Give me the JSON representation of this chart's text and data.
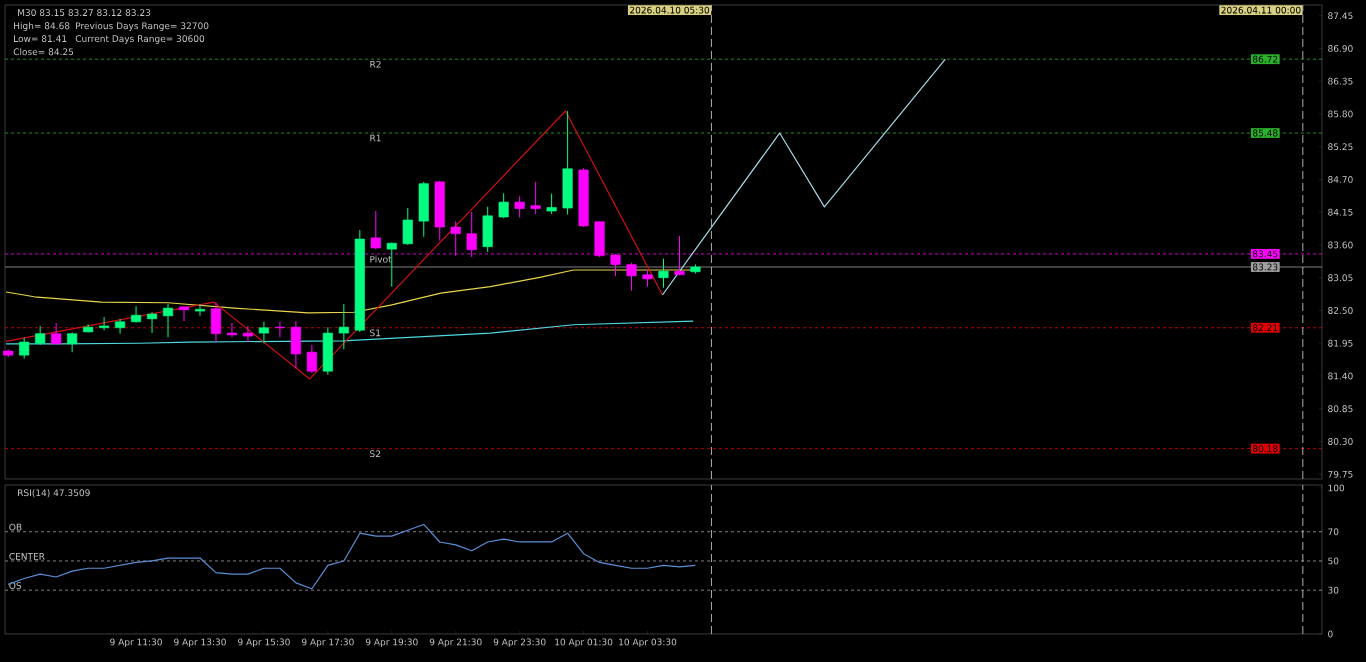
{
  "chart_data": [
    {
      "type": "candlestick",
      "title": "M30 83.15 83.27 83.12 83.23",
      "annotations": [
        "High= 84.68",
        "Previous Days Range= 32700",
        "Low= 81.41",
        "Current Days Range= 30600",
        "Close= 84.25",
        {
          "text": "R2",
          "x": "2026-04-09T18:45",
          "y": 86.72
        },
        {
          "text": "R1",
          "x": "2026-04-09T18:45",
          "y": 85.48
        },
        {
          "text": "Pivot",
          "x": "2026-04-09T18:45",
          "y": 83.45
        },
        {
          "text": "S1",
          "x": "2026-04-09T18:45",
          "y": 82.21
        },
        {
          "text": "S2",
          "x": "2026-04-09T18:45",
          "y": 80.18
        }
      ],
      "x": [
        "2026-04-09T07:30",
        "2026-04-09T08:00",
        "2026-04-09T08:30",
        "2026-04-09T09:00",
        "2026-04-09T09:30",
        "2026-04-09T10:00",
        "2026-04-09T10:30",
        "2026-04-09T11:00",
        "2026-04-09T11:30",
        "2026-04-09T12:00",
        "2026-04-09T12:30",
        "2026-04-09T13:00",
        "2026-04-09T13:30",
        "2026-04-09T14:00",
        "2026-04-09T14:30",
        "2026-04-09T15:00",
        "2026-04-09T15:30",
        "2026-04-09T16:00",
        "2026-04-09T16:30",
        "2026-04-09T17:00",
        "2026-04-09T17:30",
        "2026-04-09T18:00",
        "2026-04-09T18:30",
        "2026-04-09T19:00",
        "2026-04-09T19:30",
        "2026-04-09T20:00",
        "2026-04-09T20:30",
        "2026-04-09T21:00",
        "2026-04-09T21:30",
        "2026-04-09T22:00",
        "2026-04-09T22:30",
        "2026-04-09T23:00",
        "2026-04-09T23:30",
        "2026-04-10T00:00",
        "2026-04-10T00:30",
        "2026-04-10T01:00",
        "2026-04-10T01:30",
        "2026-04-10T02:00",
        "2026-04-10T02:30",
        "2026-04-10T03:00",
        "2026-04-10T03:30",
        "2026-04-10T04:00",
        "2026-04-10T04:30",
        "2026-04-10T05:00"
      ],
      "ohlc": [
        [
          81.82,
          81.85,
          81.72,
          81.75
        ],
        [
          81.75,
          82.04,
          81.69,
          81.97
        ],
        [
          81.95,
          82.24,
          81.92,
          82.11
        ],
        [
          82.11,
          82.29,
          81.93,
          81.94
        ],
        [
          81.94,
          82.13,
          81.8,
          82.11
        ],
        [
          82.14,
          82.27,
          82.13,
          82.22
        ],
        [
          82.21,
          82.39,
          82.17,
          82.24
        ],
        [
          82.21,
          82.36,
          82.11,
          82.31
        ],
        [
          82.31,
          82.57,
          82.3,
          82.42
        ],
        [
          82.36,
          82.47,
          82.12,
          82.44
        ],
        [
          82.41,
          82.61,
          82.05,
          82.54
        ],
        [
          82.56,
          82.57,
          82.32,
          82.51
        ],
        [
          82.49,
          82.61,
          82.41,
          82.52
        ],
        [
          82.53,
          82.64,
          81.97,
          82.11
        ],
        [
          82.12,
          82.29,
          82.05,
          82.09
        ],
        [
          82.12,
          82.24,
          81.97,
          82.07
        ],
        [
          82.12,
          82.31,
          81.95,
          82.21
        ],
        [
          82.22,
          82.31,
          82.05,
          82.21
        ],
        [
          82.22,
          82.32,
          81.53,
          81.77
        ],
        [
          81.8,
          81.92,
          81.45,
          81.48
        ],
        [
          81.48,
          82.22,
          81.42,
          82.12
        ],
        [
          82.12,
          82.61,
          81.85,
          82.22
        ],
        [
          82.17,
          83.85,
          82.14,
          83.7
        ],
        [
          83.72,
          84.17,
          83.53,
          83.55
        ],
        [
          83.53,
          83.64,
          82.9,
          83.63
        ],
        [
          83.62,
          84.22,
          83.6,
          84.02
        ],
        [
          84.0,
          84.66,
          83.74,
          84.63
        ],
        [
          84.66,
          84.68,
          83.67,
          83.9
        ],
        [
          83.9,
          84.0,
          83.42,
          83.79
        ],
        [
          83.79,
          84.16,
          83.4,
          83.52
        ],
        [
          83.57,
          84.24,
          83.48,
          84.09
        ],
        [
          84.07,
          84.47,
          84.05,
          84.32
        ],
        [
          84.32,
          84.42,
          84.06,
          84.21
        ],
        [
          84.26,
          84.66,
          84.12,
          84.21
        ],
        [
          84.17,
          84.46,
          84.12,
          84.23
        ],
        [
          84.22,
          85.85,
          84.11,
          84.88
        ],
        [
          84.86,
          84.89,
          83.9,
          83.92
        ],
        [
          83.99,
          84.0,
          83.4,
          83.42
        ],
        [
          83.43,
          83.45,
          83.08,
          83.27
        ],
        [
          83.27,
          83.3,
          82.83,
          83.08
        ],
        [
          83.1,
          83.18,
          82.9,
          83.03
        ],
        [
          83.05,
          83.37,
          82.88,
          83.16
        ],
        [
          83.16,
          83.75,
          83.09,
          83.1
        ],
        [
          83.15,
          83.27,
          83.12,
          83.23
        ]
      ],
      "colors": [
        "#ff00ff",
        "#00ff80",
        "#00ff80",
        "#ff00ff",
        "#00ff80",
        "#00ff80",
        "#00ff80",
        "#00ff80",
        "#00ff80",
        "#00ff80",
        "#00ff80",
        "#ff00ff",
        "#00ff80",
        "#ff00ff",
        "#ff00ff",
        "#ff00ff",
        "#00ff80",
        "#ff00ff",
        "#ff00ff",
        "#ff00ff",
        "#00ff80",
        "#00ff80",
        "#00ff80",
        "#ff00ff",
        "#00ff80",
        "#00ff80",
        "#00ff80",
        "#ff00ff",
        "#ff00ff",
        "#ff00ff",
        "#00ff80",
        "#00ff80",
        "#ff00ff",
        "#ff00ff",
        "#00ff80",
        "#00ff80",
        "#ff00ff",
        "#ff00ff",
        "#ff00ff",
        "#ff00ff",
        "#ff00ff",
        "#00ff80",
        "#ff00ff",
        "#00ff80"
      ],
      "series": [
        {
          "type": "line",
          "color": "#e8d44d",
          "x": [
            "2026-04-09T07:26",
            "2026-04-09T08:19",
            "2026-04-09T10:25",
            "2026-04-09T12:30",
            "2026-04-09T14:34",
            "2026-04-09T16:53",
            "2026-04-09T18:19",
            "2026-04-09T19:28",
            "2026-04-09T21:02",
            "2026-04-09T22:35",
            "2026-04-10T00:10",
            "2026-04-10T01:11",
            "2026-04-10T04:56"
          ],
          "values": [
            82.81,
            82.73,
            82.64,
            82.63,
            82.54,
            82.46,
            82.47,
            82.59,
            82.79,
            82.9,
            83.06,
            83.18,
            83.18
          ]
        },
        {
          "type": "line",
          "color": "#4fd8e0",
          "x": [
            "2026-04-09T07:26",
            "2026-04-09T09:05",
            "2026-04-09T11:35",
            "2026-04-09T13:10",
            "2026-04-09T17:58",
            "2026-04-09T22:35",
            "2026-04-10T01:11",
            "2026-04-10T04:56"
          ],
          "values": [
            81.94,
            81.94,
            81.95,
            81.97,
            81.99,
            82.12,
            82.26,
            82.32
          ]
        },
        {
          "type": "line",
          "color": "#d01010",
          "x": [
            "2026-04-09T07:26",
            "2026-04-09T13:56",
            "2026-04-09T16:56",
            "2026-04-10T00:56",
            "2026-04-10T03:58"
          ],
          "values": [
            81.98,
            82.64,
            81.35,
            85.85,
            82.76
          ]
        },
        {
          "type": "line",
          "color": "#a8d8e8",
          "x": [
            "2026-04-10T03:58",
            "2026-04-10T07:38",
            "2026-04-10T09:02",
            "2026-04-10T12:49"
          ],
          "values": [
            82.76,
            85.48,
            84.24,
            86.72
          ]
        }
      ],
      "xlim": [
        "2026-04-09T07:24",
        "2026-04-11T00:36"
      ],
      "ylim": [
        79.67,
        87.63
      ],
      "yticks": [
        {
          "value": 79.75,
          "label": "79.75"
        },
        {
          "value": 80.3,
          "label": "80.30"
        },
        {
          "value": 80.85,
          "label": "80.85"
        },
        {
          "value": 81.4,
          "label": "81.40"
        },
        {
          "value": 81.95,
          "label": "81.95"
        },
        {
          "value": 82.5,
          "label": "82.50"
        },
        {
          "value": 83.05,
          "label": "83.05"
        },
        {
          "value": 83.6,
          "label": "83.60"
        },
        {
          "value": 84.15,
          "label": "84.15"
        },
        {
          "value": 84.7,
          "label": "84.70"
        },
        {
          "value": 85.25,
          "label": "85.25"
        },
        {
          "value": 85.8,
          "label": "85.80"
        },
        {
          "value": 86.35,
          "label": "86.35"
        },
        {
          "value": 86.9,
          "label": "86.90"
        },
        {
          "value": 87.45,
          "label": "87.45"
        }
      ],
      "tick_labels": "y",
      "ref_lines": [
        {
          "axis": "y",
          "value": 86.72,
          "label": "86.72",
          "color": "#2bb02b",
          "line_style": "dashed"
        },
        {
          "axis": "y",
          "value": 85.48,
          "label": "85.48",
          "color": "#2bb02b",
          "line_style": "dashed"
        },
        {
          "axis": "y",
          "value": 83.45,
          "label": "83.45",
          "color": "#ff00ff",
          "line_style": "dashed"
        },
        {
          "axis": "y",
          "value": 83.23,
          "label": "83.23",
          "color": "#a0a0a0",
          "line_style": "solid"
        },
        {
          "axis": "y",
          "value": 82.21,
          "label": "82.21",
          "color": "#e00000",
          "line_style": "dashed"
        },
        {
          "axis": "y",
          "value": 80.18,
          "label": "80.18",
          "color": "#e00000",
          "line_style": "dashed"
        },
        {
          "axis": "x",
          "value": "2026-04-10T05:30",
          "label": "2026.04.10 05:30",
          "color": "#d8d8d8",
          "line_style": "dashed"
        },
        {
          "axis": "x",
          "value": "2026-04-11T00:00",
          "label": "2026.04.11 00:00",
          "color": "#d8d8d8",
          "line_style": "dashed"
        }
      ]
    },
    {
      "type": "line",
      "title": "RSI(14) 47.3509",
      "x": [
        "2026-04-09T07:30",
        "2026-04-09T08:00",
        "2026-04-09T08:30",
        "2026-04-09T09:00",
        "2026-04-09T09:30",
        "2026-04-09T10:00",
        "2026-04-09T10:30",
        "2026-04-09T11:00",
        "2026-04-09T11:30",
        "2026-04-09T12:00",
        "2026-04-09T12:30",
        "2026-04-09T13:00",
        "2026-04-09T13:30",
        "2026-04-09T14:00",
        "2026-04-09T14:30",
        "2026-04-09T15:00",
        "2026-04-09T15:30",
        "2026-04-09T16:00",
        "2026-04-09T16:30",
        "2026-04-09T17:00",
        "2026-04-09T17:30",
        "2026-04-09T18:00",
        "2026-04-09T18:30",
        "2026-04-09T19:00",
        "2026-04-09T19:30",
        "2026-04-09T20:00",
        "2026-04-09T20:30",
        "2026-04-09T21:00",
        "2026-04-09T21:30",
        "2026-04-09T22:00",
        "2026-04-09T22:30",
        "2026-04-09T23:00",
        "2026-04-09T23:30",
        "2026-04-10T00:00",
        "2026-04-10T00:30",
        "2026-04-10T01:00",
        "2026-04-10T01:30",
        "2026-04-10T02:00",
        "2026-04-10T02:30",
        "2026-04-10T03:00",
        "2026-04-10T03:30",
        "2026-04-10T04:00",
        "2026-04-10T04:30",
        "2026-04-10T05:00"
      ],
      "series": [
        {
          "color": "#5b8fd8",
          "values": [
            34,
            38,
            41,
            39,
            43,
            45,
            45,
            47,
            49,
            50,
            52,
            52,
            52,
            42,
            41,
            41,
            45,
            45,
            35,
            31,
            47,
            50,
            69,
            67,
            67,
            71,
            75,
            63,
            61,
            57,
            63,
            65,
            63,
            63,
            63,
            69,
            55,
            49,
            47,
            45,
            45,
            47,
            46,
            47
          ]
        }
      ],
      "xlim": [
        "2026-04-09T07:24",
        "2026-04-11T00:36"
      ],
      "ylim": [
        0,
        102
      ],
      "xticks": [
        {
          "value": "2026-04-09T11:30",
          "label": "9 Apr 11:30"
        },
        {
          "value": "2026-04-09T13:30",
          "label": "9 Apr 13:30"
        },
        {
          "value": "2026-04-09T15:30",
          "label": "9 Apr 15:30"
        },
        {
          "value": "2026-04-09T17:30",
          "label": "9 Apr 17:30"
        },
        {
          "value": "2026-04-09T19:30",
          "label": "9 Apr 19:30"
        },
        {
          "value": "2026-04-09T21:30",
          "label": "9 Apr 21:30"
        },
        {
          "value": "2026-04-09T23:30",
          "label": "9 Apr 23:30"
        },
        {
          "value": "2026-04-10T01:30",
          "label": "10 Apr 01:30"
        },
        {
          "value": "2026-04-10T03:30",
          "label": "10 Apr 03:30"
        }
      ],
      "yticks": [
        0,
        30,
        50,
        70,
        100
      ],
      "ref_lines": [
        {
          "axis": "y",
          "value": 70,
          "label": "OB",
          "color": "#a0a0a0",
          "line_style": "dashed"
        },
        {
          "axis": "y",
          "value": 50,
          "label": "CENTER",
          "color": "#a0a0a0",
          "line_style": "dashed"
        },
        {
          "axis": "y",
          "value": 30,
          "label": "OS",
          "color": "#a0a0a0",
          "line_style": "dashed"
        },
        {
          "axis": "x",
          "value": "2026-04-10T05:30",
          "color": "#d8d8d8",
          "line_style": "dashed"
        },
        {
          "axis": "x",
          "value": "2026-04-11T00:00",
          "color": "#d8d8d8",
          "line_style": "dashed"
        }
      ]
    }
  ]
}
